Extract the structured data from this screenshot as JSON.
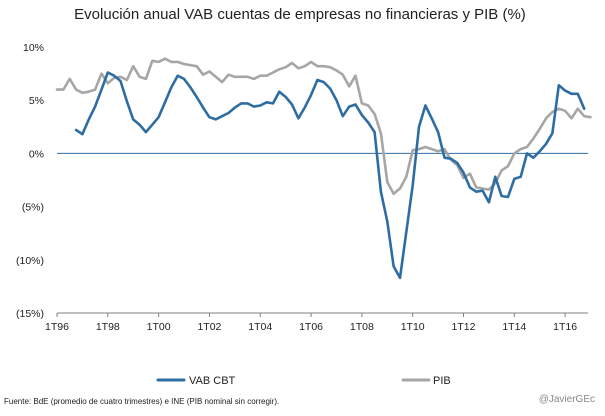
{
  "chart_data": {
    "type": "line",
    "title": "Evolución anual VAB cuentas de empresas no financieras y PIB (%)",
    "xlabel": "",
    "ylabel": "",
    "ylim": [
      -15,
      10
    ],
    "y_ticks": [
      10,
      5,
      0,
      -5,
      -10,
      -15
    ],
    "y_tick_labels": [
      "10%",
      "5%",
      "0%",
      "(5%)",
      "(10%)",
      "(15%)"
    ],
    "x_tick_positions": [
      1996.0,
      1998.0,
      2000.0,
      2002.0,
      2004.0,
      2006.0,
      2008.0,
      2010.0,
      2012.0,
      2014.0,
      2016.0
    ],
    "x_tick_labels": [
      "1T96",
      "1T98",
      "1T00",
      "1T02",
      "1T04",
      "1T06",
      "1T08",
      "1T10",
      "1T12",
      "1T14",
      "1T16"
    ],
    "xlim": [
      1996.0,
      2016.9
    ],
    "legend_position": "bottom",
    "series": [
      {
        "name": "VAB CBT",
        "color": "#2e6da4",
        "start": 1996.75,
        "step": 0.25,
        "values": [
          2.2,
          1.8,
          3.2,
          4.4,
          6.0,
          7.6,
          7.3,
          6.8,
          4.9,
          3.2,
          2.7,
          2.0,
          2.7,
          3.4,
          4.8,
          6.2,
          7.3,
          7.0,
          6.2,
          5.3,
          4.3,
          3.4,
          3.2,
          3.5,
          3.8,
          4.3,
          4.7,
          4.7,
          4.4,
          4.5,
          4.8,
          4.7,
          5.8,
          5.3,
          4.6,
          3.3,
          4.3,
          5.5,
          6.9,
          6.7,
          6.1,
          5.0,
          3.5,
          4.4,
          4.6,
          3.6,
          2.9,
          2.0,
          -3.6,
          -6.4,
          -10.6,
          -11.7,
          -7.4,
          -3.0,
          2.5,
          4.5,
          3.3,
          2.0,
          -0.4,
          -0.5,
          -0.9,
          -1.8,
          -3.2,
          -3.6,
          -3.5,
          -4.6,
          -2.2,
          -4.0,
          -4.1,
          -2.4,
          -2.2,
          0.0,
          -0.4,
          0.2,
          0.9,
          1.9,
          6.4,
          5.9,
          5.6,
          5.6,
          4.2
        ]
      },
      {
        "name": "PIB",
        "color": "#a6a6a6",
        "start": 1996.0,
        "step": 0.25,
        "values": [
          6.0,
          6.0,
          7.0,
          6.0,
          5.7,
          5.8,
          6.0,
          7.5,
          6.6,
          7.1,
          7.2,
          6.9,
          8.2,
          7.2,
          7.0,
          8.7,
          8.6,
          8.9,
          8.6,
          8.6,
          8.4,
          8.3,
          8.2,
          7.4,
          7.7,
          7.2,
          6.7,
          7.4,
          7.2,
          7.2,
          7.2,
          7.0,
          7.3,
          7.3,
          7.6,
          7.9,
          8.1,
          8.5,
          8.0,
          8.2,
          8.6,
          8.2,
          8.2,
          8.1,
          7.8,
          7.4,
          6.3,
          7.3,
          4.7,
          4.5,
          3.7,
          1.9,
          -2.7,
          -3.8,
          -3.3,
          -2.2,
          0.3,
          0.4,
          0.6,
          0.4,
          0.2,
          0.4,
          -0.6,
          -1.1,
          -2.3,
          -1.9,
          -3.2,
          -3.3,
          -3.4,
          -2.8,
          -1.6,
          -1.2,
          0.0,
          0.4,
          0.6,
          1.4,
          2.3,
          3.3,
          3.9,
          4.2,
          4.0,
          3.3,
          4.2,
          3.5,
          3.4
        ]
      }
    ],
    "footnote": "Fuente: BdE (promedio de cuatro trimestres) e INE (PIB nominal sin corregir).",
    "credit": "@JavierGEc"
  }
}
